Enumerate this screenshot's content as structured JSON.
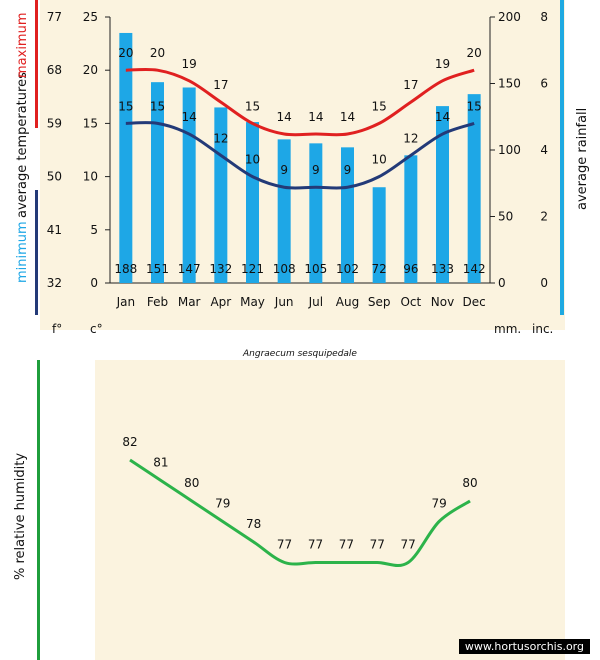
{
  "colors": {
    "background": "#fbf3df",
    "bar": "#1ea7e6",
    "max_line": "#e02020",
    "min_line": "#233a78",
    "humidity_line": "#2cb34a",
    "rain_accent": "#1fa9e1",
    "humidity_accent": "#1f9e3c"
  },
  "labels": {
    "maximum": "maximum",
    "average_temperatures": "average temperatures",
    "minimum": "minimum",
    "average_rainfall": "average rainfall",
    "f_deg": "f°",
    "c_deg": "c°",
    "mm": "mm.",
    "inc": "inc.",
    "species": "Angraecum sesquipedale",
    "relative_humidity": "%  relative humidity",
    "watermark": "www.hortusorchis.org"
  },
  "chart_data": [
    {
      "type": "bar",
      "categories": [
        "Jan",
        "Feb",
        "Mar",
        "Apr",
        "May",
        "Jun",
        "Jul",
        "Aug",
        "Sep",
        "Oct",
        "Nov",
        "Dec"
      ],
      "series": [
        {
          "name": "average rainfall",
          "type": "bar",
          "axis": "mm",
          "values": [
            188,
            151,
            147,
            132,
            121,
            108,
            105,
            102,
            72,
            96,
            133,
            142
          ]
        },
        {
          "name": "maximum",
          "type": "line",
          "axis": "c",
          "values": [
            20,
            20,
            19,
            17,
            15,
            14,
            14,
            14,
            15,
            17,
            19,
            20
          ]
        },
        {
          "name": "minimum",
          "type": "line",
          "axis": "c",
          "values": [
            15,
            15,
            14,
            12,
            10,
            9,
            9,
            9,
            10,
            12,
            14,
            15
          ]
        }
      ],
      "axes": {
        "f_ticks": [
          "77",
          "68",
          "59",
          "50",
          "41",
          "32"
        ],
        "c_ticks": [
          "25",
          "20",
          "15",
          "10",
          "5",
          "0"
        ],
        "mm_ticks": [
          "200",
          "150",
          "100",
          "50",
          "0"
        ],
        "inc_ticks": [
          "8",
          "6",
          "4",
          "2",
          "0"
        ],
        "c_range": [
          0,
          25
        ],
        "mm_range": [
          0,
          200
        ]
      },
      "grid": false
    },
    {
      "type": "line",
      "categories": [
        "Jan",
        "Feb",
        "Mar",
        "Apr",
        "May",
        "Jun",
        "Jul",
        "Aug",
        "Sep",
        "Oct",
        "Nov",
        "Dec"
      ],
      "series": [
        {
          "name": "relative humidity",
          "values": [
            82,
            81,
            80,
            79,
            78,
            77,
            77,
            77,
            77,
            77,
            79,
            80
          ]
        }
      ],
      "ylabel": "%  relative humidity",
      "grid": false
    }
  ]
}
